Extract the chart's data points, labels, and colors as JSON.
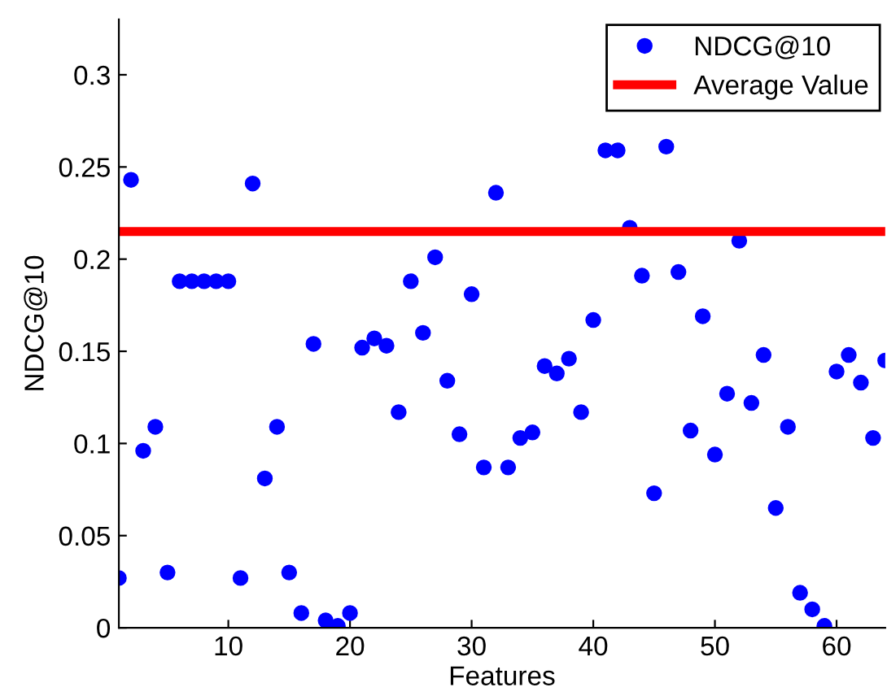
{
  "chart_data": {
    "type": "scatter",
    "xlabel": "Features",
    "ylabel": "NDCG@10",
    "x": [
      1,
      2,
      3,
      4,
      5,
      6,
      7,
      8,
      9,
      10,
      11,
      12,
      13,
      14,
      15,
      16,
      17,
      18,
      19,
      20,
      21,
      22,
      23,
      24,
      25,
      26,
      27,
      28,
      29,
      30,
      31,
      32,
      33,
      34,
      35,
      36,
      37,
      38,
      39,
      40,
      41,
      42,
      43,
      44,
      45,
      46,
      47,
      48,
      49,
      50,
      51,
      52,
      53,
      54,
      55,
      56,
      57,
      58,
      59,
      60,
      61,
      62,
      63,
      64
    ],
    "series": [
      {
        "name": "NDCG@10",
        "color": "#0000ff",
        "values": [
          0.027,
          0.243,
          0.096,
          0.109,
          0.03,
          0.188,
          0.188,
          0.188,
          0.188,
          0.188,
          0.027,
          0.241,
          0.081,
          0.109,
          0.03,
          0.008,
          0.154,
          0.004,
          0.001,
          0.008,
          0.152,
          0.157,
          0.153,
          0.117,
          0.188,
          0.16,
          0.201,
          0.134,
          0.105,
          0.181,
          0.087,
          0.236,
          0.087,
          0.103,
          0.106,
          0.142,
          0.138,
          0.146,
          0.117,
          0.167,
          0.259,
          0.259,
          0.217,
          0.191,
          0.073,
          0.261,
          0.193,
          0.107,
          0.169,
          0.094,
          0.127,
          0.21,
          0.122,
          0.148,
          0.065,
          0.109,
          0.019,
          0.01,
          0.001,
          0.139,
          0.148,
          0.133,
          0.103,
          0.145
        ]
      }
    ],
    "ref_lines": [
      {
        "axis": "y",
        "value": 0.215,
        "label": "Average Value",
        "color": "#ff0000"
      }
    ],
    "xlim": [
      1,
      64
    ],
    "ylim": [
      0,
      0.33
    ],
    "xticks": [
      10,
      20,
      30,
      40,
      50,
      60
    ],
    "yticks": [
      0,
      0.05,
      0.1,
      0.15,
      0.2,
      0.25,
      0.3
    ],
    "marker": "circle",
    "grid": false,
    "legend": "top right"
  }
}
